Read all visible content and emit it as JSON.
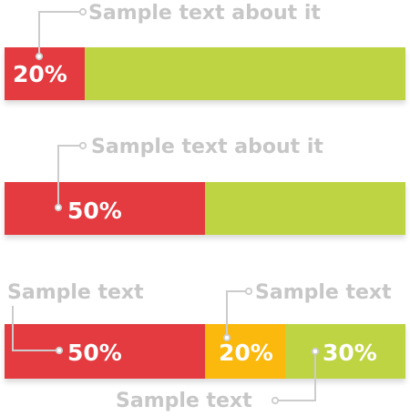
{
  "colors": {
    "red": "#e43b3f",
    "green": "#bfd443",
    "orange": "#fbb80f",
    "callout_text": "#c7c7c7",
    "leader": "#cccccc",
    "label": "#ffffff"
  },
  "chart_data": [
    {
      "type": "bar",
      "orientation": "horizontal",
      "stacked": true,
      "scale": [
        0,
        100
      ],
      "annotations": [
        "Sample text about it"
      ],
      "segments": [
        {
          "value": 20,
          "label": "20%",
          "color": "red"
        },
        {
          "value": 80,
          "label": "",
          "color": "green"
        }
      ]
    },
    {
      "type": "bar",
      "orientation": "horizontal",
      "stacked": true,
      "scale": [
        0,
        100
      ],
      "annotations": [
        "Sample text about it"
      ],
      "segments": [
        {
          "value": 50,
          "label": "50%",
          "color": "red"
        },
        {
          "value": 50,
          "label": "",
          "color": "green"
        }
      ]
    },
    {
      "type": "bar",
      "orientation": "horizontal",
      "stacked": true,
      "scale": [
        0,
        100
      ],
      "annotations": [
        "Sample text",
        "Sample text",
        "Sample text"
      ],
      "segments": [
        {
          "value": 50,
          "label": "50%",
          "color": "red"
        },
        {
          "value": 20,
          "label": "20%",
          "color": "orange"
        },
        {
          "value": 30,
          "label": "30%",
          "color": "green"
        }
      ]
    }
  ]
}
